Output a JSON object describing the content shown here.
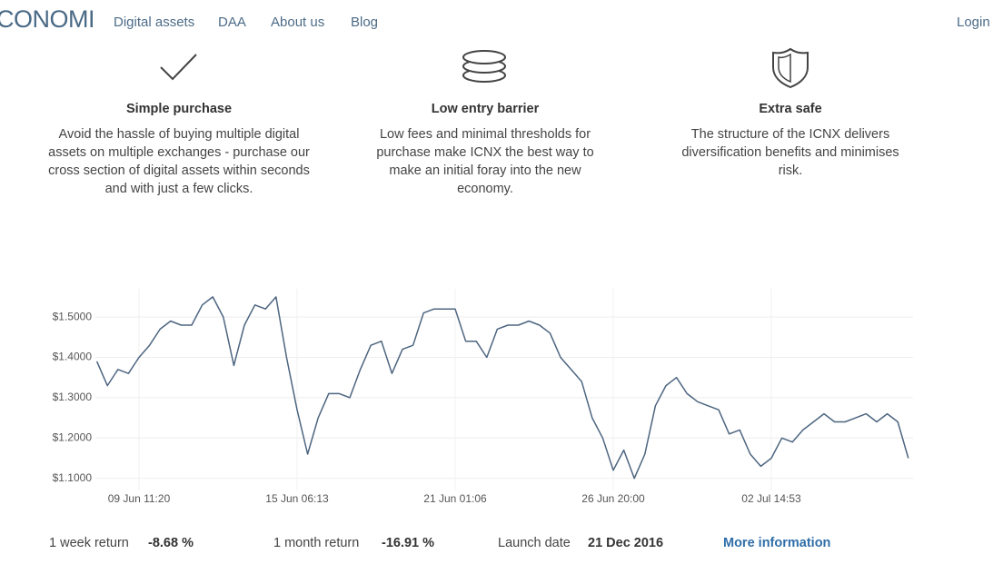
{
  "nav": {
    "logo": "CONOMI",
    "links": [
      "Digital assets",
      "DAA",
      "About us",
      "Blog"
    ],
    "login": "Login"
  },
  "features": [
    {
      "title": "Simple purchase",
      "text": "Avoid the hassle of buying multiple digital assets on multiple exchanges - purchase our cross section of digital assets within seconds and with just a few clicks."
    },
    {
      "title": "Low entry barrier",
      "text": "Low fees and minimal thresholds for purchase make ICNX the best way to make an initial foray into the new economy."
    },
    {
      "title": "Extra safe",
      "text": "The structure of the ICNX delivers diversification benefits and minimises risk."
    }
  ],
  "chart_data": {
    "type": "line",
    "color": "#4d6580",
    "grid": true,
    "categories": [
      null,
      null,
      null,
      null,
      "09 Jun 11:20",
      null,
      null,
      null,
      null,
      null,
      null,
      null,
      null,
      null,
      null,
      null,
      null,
      null,
      null,
      "15 Jun 06:13",
      null,
      null,
      null,
      null,
      null,
      null,
      null,
      null,
      null,
      null,
      null,
      null,
      null,
      null,
      "21 Jun 01:06",
      null,
      null,
      null,
      null,
      null,
      null,
      null,
      null,
      null,
      null,
      null,
      null,
      null,
      null,
      "26 Jun 20:00",
      null,
      null,
      null,
      null,
      null,
      null,
      null,
      null,
      null,
      null,
      null,
      null,
      null,
      null,
      "02 Jul 14:53",
      null,
      null,
      null,
      null,
      null,
      null,
      null,
      null,
      null,
      null,
      null,
      null,
      null
    ],
    "values": [
      1.39,
      1.33,
      1.37,
      1.36,
      1.4,
      1.43,
      1.47,
      1.49,
      1.48,
      1.48,
      1.53,
      1.55,
      1.5,
      1.38,
      1.48,
      1.53,
      1.52,
      1.55,
      1.4,
      1.27,
      1.16,
      1.25,
      1.31,
      1.31,
      1.3,
      1.37,
      1.43,
      1.44,
      1.36,
      1.42,
      1.43,
      1.51,
      1.52,
      1.52,
      1.52,
      1.44,
      1.44,
      1.4,
      1.47,
      1.48,
      1.48,
      1.49,
      1.48,
      1.46,
      1.4,
      1.37,
      1.34,
      1.25,
      1.2,
      1.12,
      1.17,
      1.1,
      1.16,
      1.28,
      1.33,
      1.35,
      1.31,
      1.29,
      1.28,
      1.27,
      1.21,
      1.22,
      1.16,
      1.13,
      1.15,
      1.2,
      1.19,
      1.22,
      1.24,
      1.26,
      1.24,
      1.24,
      1.25,
      1.26,
      1.24,
      1.26,
      1.24,
      1.15
    ],
    "ylim": [
      1.07,
      1.57
    ],
    "yticks": [
      {
        "value": 1.1,
        "label": "$1.1000"
      },
      {
        "value": 1.2,
        "label": "$1.2000"
      },
      {
        "value": 1.3,
        "label": "$1.3000"
      },
      {
        "value": 1.4,
        "label": "$1.4000"
      },
      {
        "value": 1.5,
        "label": "$1.5000"
      }
    ]
  },
  "stats": [
    {
      "label": "1 week return",
      "value": "-8.68 %"
    },
    {
      "label": "1 month return",
      "value": "-16.91 %"
    },
    {
      "label": "Launch date",
      "value": "21 Dec 2016"
    }
  ],
  "more": "More information"
}
